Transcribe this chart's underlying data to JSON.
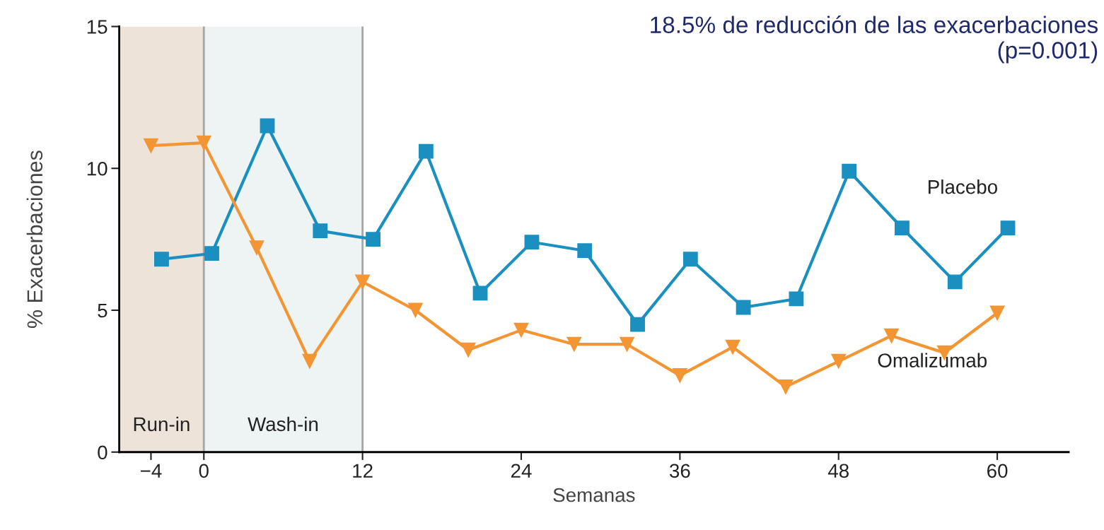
{
  "chart_data": {
    "type": "line",
    "xlabel": "Semanas",
    "ylabel": "% Exacerbaciones",
    "annotations": [
      "18.5% de reducción de las exacerbaciones\n(p=0.001)"
    ],
    "xlim": [
      -6.4,
      65.4
    ],
    "ylim": [
      0,
      15
    ],
    "xticks": [
      {
        "value": -4,
        "label": "−4"
      },
      0,
      12,
      24,
      36,
      48,
      60
    ],
    "yticks": [
      0,
      5,
      10,
      15
    ],
    "grid": false,
    "legend": false,
    "line_style": "solid",
    "bands": [
      {
        "axis": "x",
        "from": -6.4,
        "to": 0,
        "label": "Run-in",
        "color": "#ede3d9"
      },
      {
        "axis": "x",
        "from": 0,
        "to": 12,
        "label": "Wash-in",
        "color": "#eef3f3"
      }
    ],
    "ref_lines": [
      {
        "axis": "x",
        "value": 0,
        "color": "#a6a6a6"
      },
      {
        "axis": "x",
        "value": 12,
        "color": "#a6a6a6"
      }
    ],
    "series": [
      {
        "name": "Placebo",
        "color": "#1a8fc0",
        "marker": "square",
        "x": [
          -3.2,
          0.6,
          4.8,
          8.8,
          12.8,
          16.8,
          20.9,
          24.8,
          28.8,
          32.8,
          36.8,
          40.8,
          44.8,
          48.8,
          52.8,
          56.8,
          60.8
        ],
        "values": [
          6.8,
          7.0,
          11.5,
          7.8,
          7.5,
          10.6,
          5.6,
          7.4,
          7.1,
          4.5,
          6.8,
          5.1,
          5.4,
          9.9,
          7.9,
          6.0,
          7.9
        ]
      },
      {
        "name": "Omalizumab",
        "color": "#f39533",
        "marker": "triangle",
        "x": [
          -4,
          0,
          4,
          8,
          12,
          16,
          20,
          24,
          28,
          32,
          36,
          40,
          44,
          48,
          52,
          56,
          60
        ],
        "values": [
          10.8,
          10.9,
          7.2,
          3.2,
          6.0,
          5.0,
          3.6,
          4.3,
          3.8,
          3.8,
          2.7,
          3.7,
          2.3,
          3.2,
          4.1,
          3.5,
          4.9
        ]
      }
    ]
  }
}
